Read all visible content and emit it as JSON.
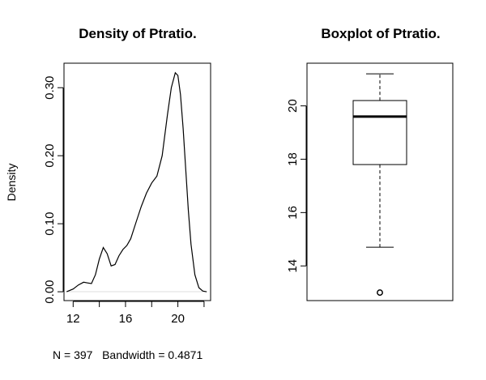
{
  "chart_data": [
    {
      "type": "line",
      "title": "Density of Ptratio.",
      "xlabel": "N = 397   Bandwidth = 0.4871",
      "ylabel": "Density",
      "xlim": [
        11.3,
        22.5
      ],
      "ylim": [
        -0.013,
        0.336
      ],
      "xticks": [
        12,
        16,
        20
      ],
      "xtick_labels": [
        "12",
        "16",
        "20"
      ],
      "yticks": [
        0.0,
        0.1,
        0.2,
        0.3
      ],
      "ytick_labels": [
        "0.00",
        "0.10",
        "0.20",
        "0.30"
      ],
      "grid": false,
      "x": [
        11.5,
        12.0,
        12.4,
        12.8,
        13.1,
        13.4,
        13.7,
        14.0,
        14.3,
        14.6,
        14.9,
        15.2,
        15.5,
        15.8,
        16.1,
        16.4,
        16.8,
        17.2,
        17.6,
        18.0,
        18.4,
        18.8,
        19.2,
        19.5,
        19.8,
        20.0,
        20.2,
        20.4,
        20.6,
        20.8,
        21.0,
        21.3,
        21.6,
        21.9,
        22.2
      ],
      "y": [
        0.0,
        0.004,
        0.01,
        0.014,
        0.013,
        0.012,
        0.025,
        0.048,
        0.065,
        0.056,
        0.038,
        0.04,
        0.053,
        0.062,
        0.068,
        0.078,
        0.102,
        0.125,
        0.145,
        0.16,
        0.17,
        0.2,
        0.26,
        0.3,
        0.322,
        0.318,
        0.29,
        0.24,
        0.18,
        0.12,
        0.07,
        0.025,
        0.006,
        0.001,
        0.0
      ]
    },
    {
      "type": "box",
      "title": "Boxplot of Ptratio.",
      "ylim": [
        12.7,
        21.6
      ],
      "yticks": [
        14,
        16,
        18,
        20
      ],
      "ytick_labels": [
        "14",
        "16",
        "18",
        "20"
      ],
      "whisker_low": 14.7,
      "q1": 17.8,
      "median": 19.6,
      "q3": 20.2,
      "whisker_high": 21.2,
      "outliers": [
        13.0
      ]
    }
  ]
}
